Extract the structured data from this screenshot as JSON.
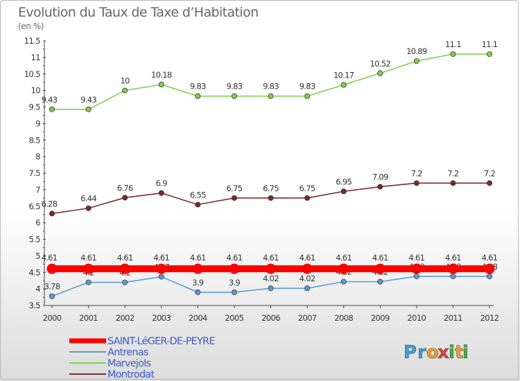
{
  "chart_data": {
    "type": "line",
    "title": "Evolution du Taux de Taxe d’Habitation",
    "subtitle": "(en %)",
    "x": [
      "2000",
      "2001",
      "2002",
      "2003",
      "2004",
      "2005",
      "2006",
      "2007",
      "2008",
      "2009",
      "2010",
      "2011",
      "2012"
    ],
    "ylim": [
      3.5,
      11.5
    ],
    "yticks": [
      "3.5",
      "4",
      "4.5",
      "5",
      "5.5",
      "6",
      "6.5",
      "7",
      "7.5",
      "8",
      "8.5",
      "9",
      "9.5",
      "10",
      "10.5",
      "11",
      "11.5"
    ],
    "grid": false,
    "legend_position": "bottom-left",
    "series": [
      {
        "name": "SAINT-LéGER-DE-PEYRE",
        "color": "#ff0000",
        "values": [
          4.61,
          4.61,
          4.61,
          4.61,
          4.61,
          4.61,
          4.61,
          4.61,
          4.61,
          4.61,
          4.61,
          4.61,
          4.61
        ],
        "labels": [
          "4.61",
          "4.61",
          "4.61",
          "4.61",
          "4.61",
          "4.61",
          "4.61",
          "4.61",
          "4.61",
          "4.61",
          "4.61",
          "4.61",
          "4.61"
        ]
      },
      {
        "name": "Antrenas",
        "color": "#5b9bd5",
        "values": [
          3.78,
          4.2,
          4.2,
          4.37,
          3.9,
          3.9,
          4.02,
          4.02,
          4.22,
          4.22,
          4.38,
          4.38,
          4.38
        ],
        "labels": [
          "3.78",
          "4.2",
          "4.2",
          "4.37",
          "3.9",
          "3.9",
          "4.02",
          "4.02",
          "4.22",
          "4.22",
          "4.38",
          "4.38",
          "4.38"
        ]
      },
      {
        "name": "Marvejols",
        "color": "#7fd04a",
        "values": [
          9.43,
          9.43,
          10,
          10.18,
          9.83,
          9.83,
          9.83,
          9.83,
          10.17,
          10.52,
          10.89,
          11.1,
          11.1
        ],
        "labels": [
          "9.43",
          "9.43",
          "10",
          "10.18",
          "9.83",
          "9.83",
          "9.83",
          "9.83",
          "10.17",
          "10.52",
          "10.89",
          "11.1",
          "11.1"
        ]
      },
      {
        "name": "Montrodat",
        "color": "#7a2a2a",
        "values": [
          6.28,
          6.44,
          6.76,
          6.9,
          6.55,
          6.75,
          6.75,
          6.75,
          6.95,
          7.09,
          7.2,
          7.2,
          7.2
        ],
        "labels": [
          "6.28",
          "6.44",
          "6.76",
          "6.9",
          "6.55",
          "6.75",
          "6.75",
          "6.75",
          "6.95",
          "7.09",
          "7.2",
          "7.2",
          "7.2"
        ]
      }
    ]
  },
  "logo": {
    "letters": [
      "P",
      "r",
      "o",
      "x",
      "i",
      "t",
      "i"
    ],
    "colors": [
      "#3aa0dc",
      "#3aa0dc",
      "#f0a020",
      "#e04040",
      "#40b040",
      "#f0a020",
      "#40b040"
    ]
  }
}
